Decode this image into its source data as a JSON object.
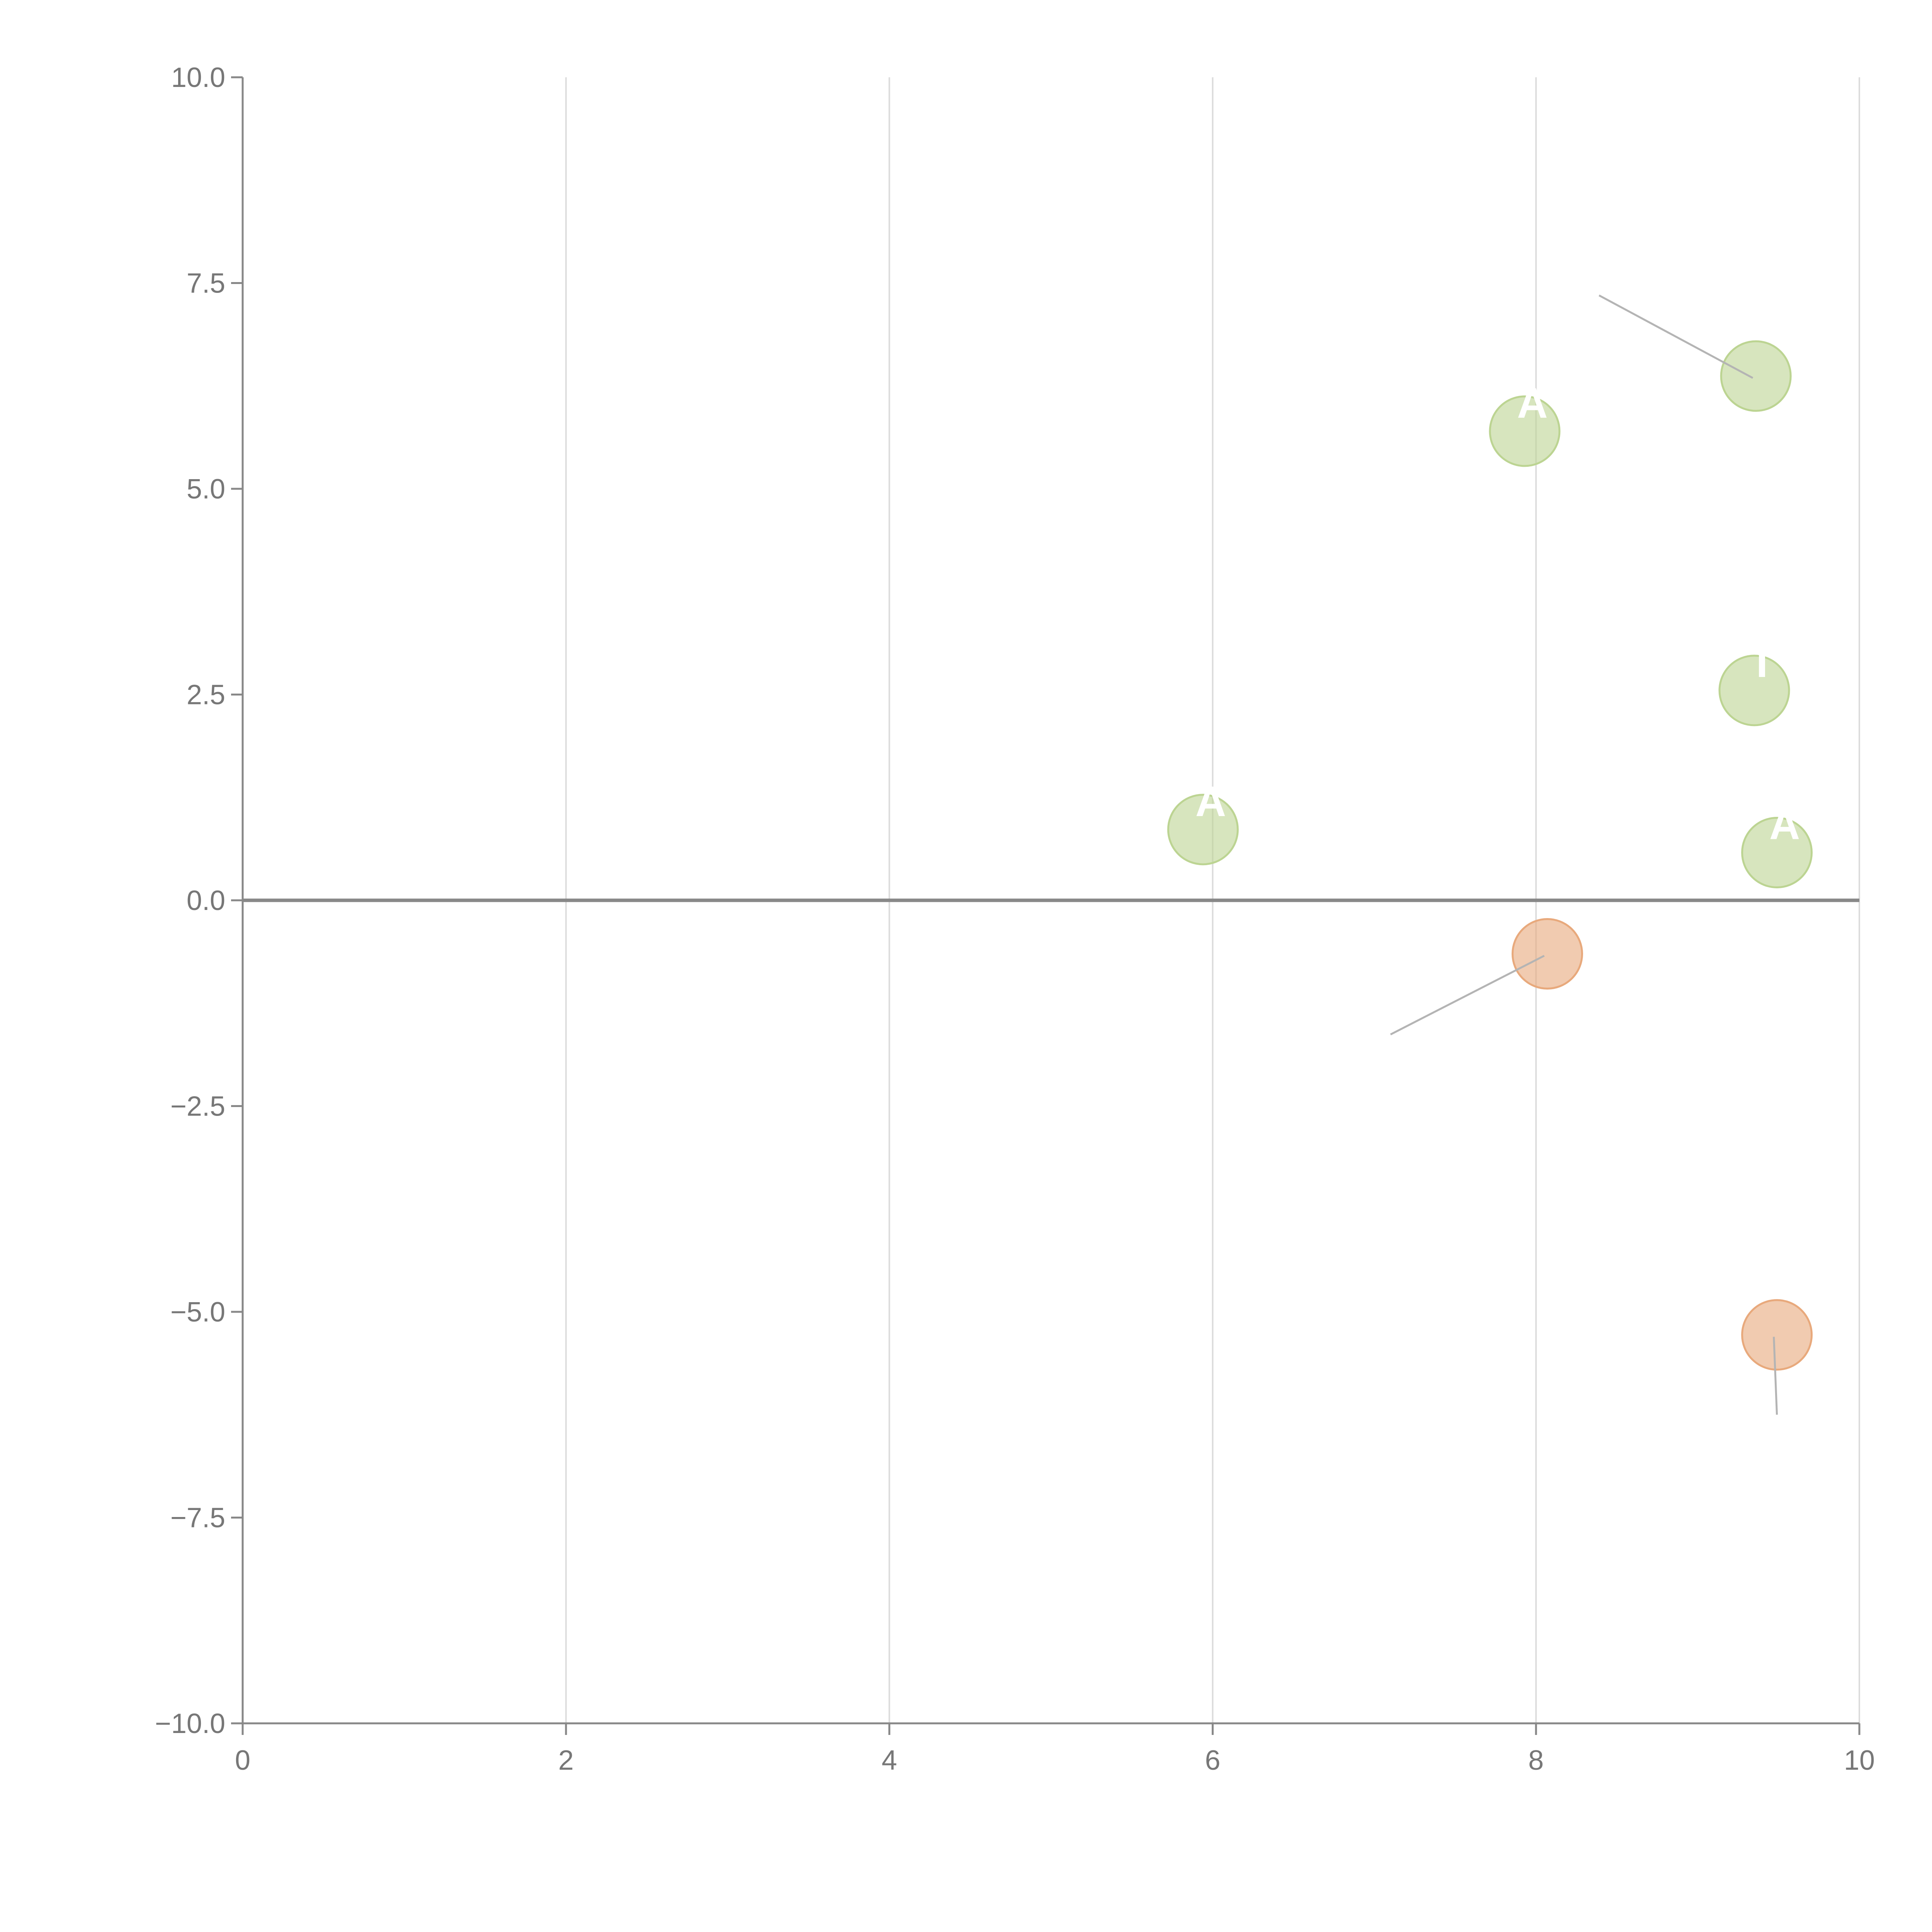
{
  "colors": {
    "positive": "#bcd492",
    "negative": "#e8a97c",
    "axis": "#888888",
    "grid": "#dcdcdc",
    "tick_text": "#777777",
    "leader": "#b4b4b4"
  },
  "chart_data": {
    "type": "scatter",
    "title": "",
    "xlabel": "",
    "ylabel": "",
    "xlim": [
      0,
      10
    ],
    "ylim": [
      -10,
      10
    ],
    "x_ticks": [
      0,
      2,
      4,
      6,
      8,
      10
    ],
    "x_tick_labels": [
      "0",
      "2",
      "4",
      "6",
      "8",
      "10"
    ],
    "y_ticks": [
      10,
      7.5,
      5,
      2.5,
      0,
      -2.5,
      -5,
      -7.5,
      -10
    ],
    "y_tick_labels": [
      "10.0",
      "7.5",
      "5.0",
      "2.5",
      "0.0",
      "−2.5",
      "−5.0",
      "−7.5",
      "−10.0"
    ],
    "vertical_grid": true,
    "zero_line": true,
    "points": [
      {
        "x": 9.36,
        "y": 6.37,
        "sign": "positive",
        "label": "",
        "leader_to": {
          "x": 8.39,
          "y": 7.35
        }
      },
      {
        "x": 7.93,
        "y": 5.7,
        "sign": "positive",
        "label": "A"
      },
      {
        "x": 9.35,
        "y": 2.55,
        "sign": "positive",
        "label": "I"
      },
      {
        "x": 5.94,
        "y": 0.86,
        "sign": "positive",
        "label": "A"
      },
      {
        "x": 9.49,
        "y": 0.58,
        "sign": "positive",
        "label": "A"
      },
      {
        "x": 8.07,
        "y": -0.65,
        "sign": "negative",
        "label": "",
        "leader_to": {
          "x": 7.1,
          "y": -1.63
        }
      },
      {
        "x": 9.49,
        "y": -5.28,
        "sign": "negative",
        "label": "",
        "leader_to": {
          "x": 9.49,
          "y": -6.25
        }
      }
    ]
  }
}
